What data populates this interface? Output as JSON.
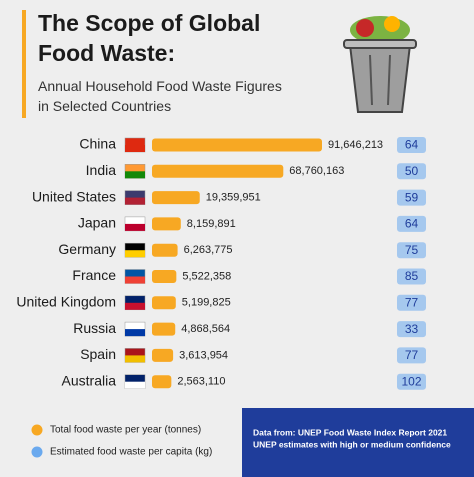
{
  "chart_data": {
    "type": "bar",
    "title": "The Scope of Global Food Waste:",
    "subtitle": "Annual Household Food Waste Figures in Selected Countries",
    "categories": [
      "China",
      "India",
      "United States",
      "Japan",
      "Germany",
      "France",
      "United Kingdom",
      "Russia",
      "Spain",
      "Australia"
    ],
    "series": [
      {
        "name": "Total food waste per year (tonnes)",
        "color": "#f7a823",
        "values": [
          91646213,
          68760163,
          19359951,
          8159891,
          6263775,
          5522358,
          5199825,
          4868564,
          3613954,
          2563110
        ],
        "value_labels": [
          "91,646,213",
          "68,760,163",
          "19,359,951",
          "8,159,891",
          "6,263,775",
          "5,522,358",
          "5,199,825",
          "4,868,564",
          "3,613,954",
          "2,563,110"
        ]
      },
      {
        "name": "Estimated food waste per capita (kg)",
        "color": "#6aa9ee",
        "values": [
          64,
          50,
          59,
          64,
          75,
          85,
          77,
          33,
          77,
          102
        ]
      }
    ],
    "source": [
      "Data from: UNEP Food Waste Index Report 2021",
      "UNEP estimates with high or medium confidence"
    ]
  }
}
